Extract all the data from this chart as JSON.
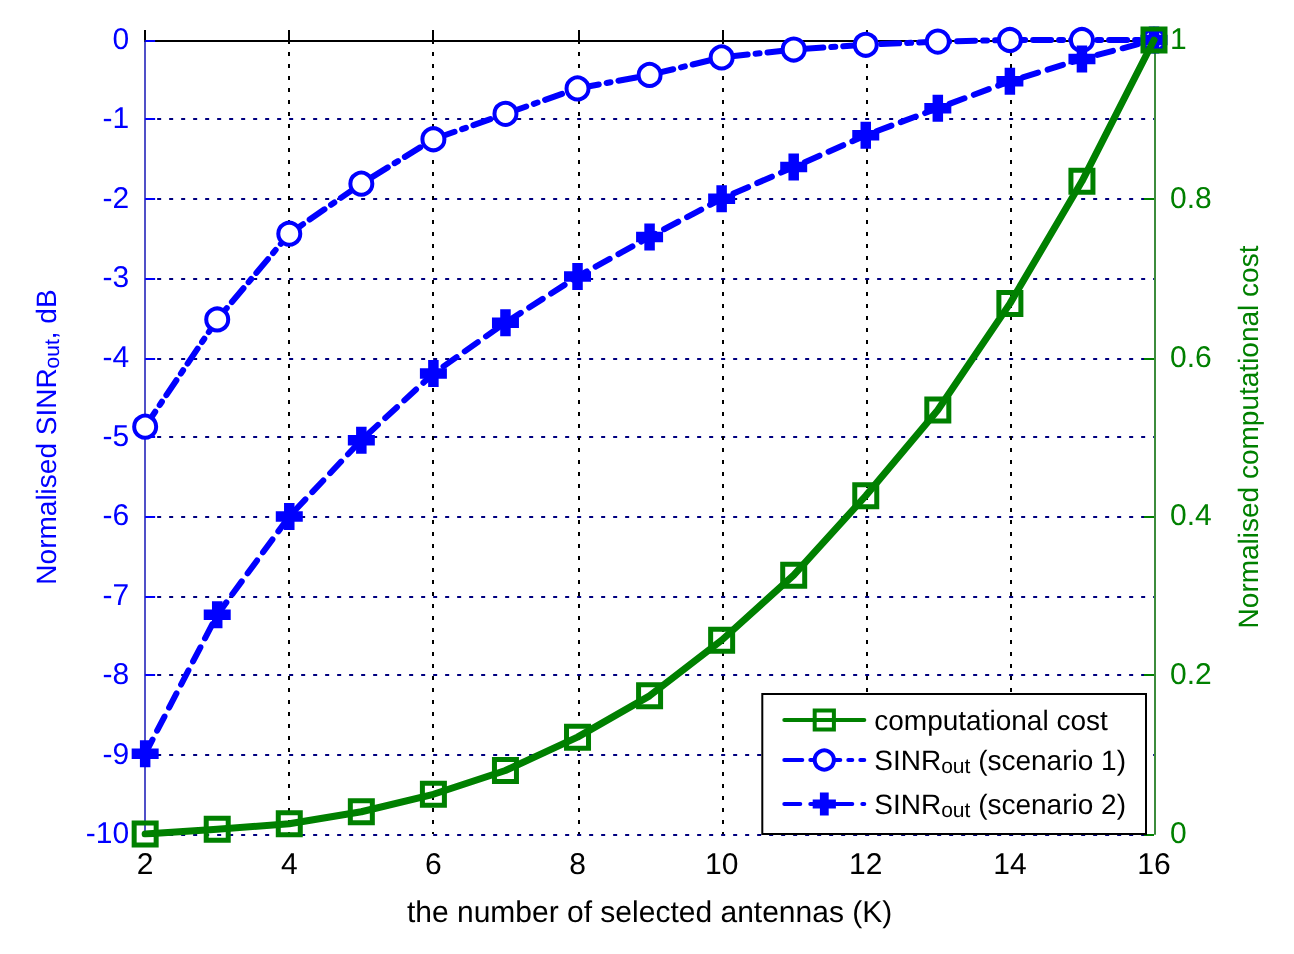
{
  "chart_data": {
    "type": "line",
    "xlabel": "the number of selected antennas (K)",
    "ylabel": "Normalised SINR$_{out}$, dB",
    "y2label": "Normalised computational cost",
    "x": [
      2,
      3,
      4,
      5,
      6,
      7,
      8,
      9,
      10,
      11,
      12,
      13,
      14,
      15,
      16
    ],
    "xlim": [
      2,
      16
    ],
    "xticks": [
      2,
      4,
      6,
      8,
      10,
      12,
      14,
      16
    ],
    "ylim": [
      -10,
      0
    ],
    "yticks": [
      -10,
      -9,
      -8,
      -7,
      -6,
      -5,
      -4,
      -3,
      -2,
      -1,
      0
    ],
    "y2lim": [
      0,
      1
    ],
    "y2ticks": [
      0,
      0.2,
      0.4,
      0.6,
      0.8,
      1
    ],
    "grid": true,
    "legend": "bottom right",
    "series": [
      {
        "name": "computational cost",
        "color": "#008000",
        "axis": "y2",
        "marker": "square",
        "line_style": "solid",
        "values": [
          0,
          0.006,
          0.013,
          0.028,
          0.05,
          0.08,
          0.122,
          0.174,
          0.244,
          0.326,
          0.426,
          0.534,
          0.668,
          0.822,
          1
        ]
      },
      {
        "name": "SINR$_{out}$ (scenario 1)",
        "color": "#0000ff",
        "marker": "circle",
        "line_style": "dashdot",
        "values": [
          -4.87,
          -3.52,
          -2.44,
          -1.81,
          -1.25,
          -0.93,
          -0.61,
          -0.44,
          -0.22,
          -0.12,
          -0.06,
          -0.02,
          0,
          0,
          0
        ]
      },
      {
        "name": "SINR$_{out}$ (scenario 2)",
        "color": "#0000ff",
        "marker": "cross",
        "line_style": "dashed",
        "values": [
          -8.99,
          -7.24,
          -6.0,
          -5.04,
          -4.2,
          -3.56,
          -2.98,
          -2.48,
          -2.0,
          -1.6,
          -1.2,
          -0.86,
          -0.52,
          -0.24,
          0
        ]
      }
    ]
  }
}
